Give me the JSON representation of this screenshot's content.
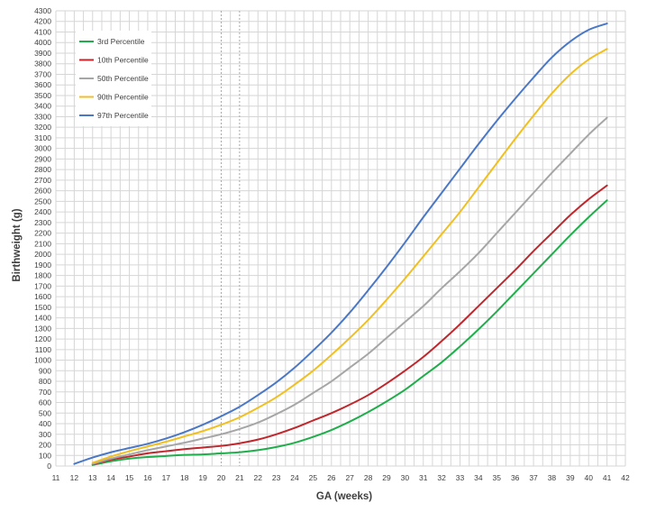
{
  "chart_data": {
    "type": "line",
    "xlabel": "GA (weeks)",
    "ylabel": "Birthweight (g)",
    "xlim": [
      11,
      42
    ],
    "ylim": [
      0,
      4300
    ],
    "x_ticks": [
      11,
      12,
      13,
      14,
      15,
      16,
      17,
      18,
      19,
      20,
      21,
      22,
      23,
      24,
      25,
      26,
      27,
      28,
      29,
      30,
      31,
      32,
      33,
      34,
      35,
      36,
      37,
      38,
      39,
      40,
      41,
      42
    ],
    "y_ticks": [
      0,
      100,
      200,
      300,
      400,
      500,
      600,
      700,
      800,
      900,
      1000,
      1100,
      1200,
      1300,
      1400,
      1500,
      1600,
      1700,
      1800,
      1900,
      2000,
      2100,
      2200,
      2300,
      2400,
      2500,
      2600,
      2700,
      2800,
      2900,
      3000,
      3100,
      3200,
      3300,
      3400,
      3500,
      3600,
      3700,
      3800,
      3900,
      4000,
      4100,
      4200,
      4300
    ],
    "grid": true,
    "legend_position": "top-left",
    "x": [
      12,
      13,
      14,
      15,
      16,
      17,
      18,
      19,
      20,
      21,
      22,
      23,
      24,
      25,
      26,
      27,
      28,
      29,
      30,
      31,
      32,
      33,
      34,
      35,
      36,
      37,
      38,
      39,
      40,
      41
    ],
    "series": [
      {
        "name": "3rd Percentile",
        "color": "#1fae4b",
        "x": [
          13,
          14,
          15,
          16,
          17,
          18,
          19,
          20,
          21,
          22,
          23,
          24,
          25,
          26,
          27,
          28,
          29,
          30,
          31,
          32,
          33,
          34,
          35,
          36,
          37,
          38,
          39,
          40,
          41
        ],
        "values": [
          10,
          45,
          70,
          85,
          95,
          105,
          110,
          120,
          130,
          150,
          180,
          220,
          275,
          340,
          420,
          510,
          610,
          720,
          850,
          980,
          1130,
          1290,
          1460,
          1640,
          1820,
          2000,
          2180,
          2350,
          2510
        ]
      },
      {
        "name": "10th Percentile",
        "color": "#c0272d",
        "x": [
          13,
          14,
          15,
          16,
          17,
          18,
          19,
          20,
          21,
          22,
          23,
          24,
          25,
          26,
          27,
          28,
          29,
          30,
          31,
          32,
          33,
          34,
          35,
          36,
          37,
          38,
          39,
          40,
          41
        ],
        "values": [
          15,
          60,
          90,
          120,
          140,
          160,
          175,
          190,
          215,
          250,
          300,
          360,
          430,
          500,
          580,
          670,
          780,
          900,
          1030,
          1180,
          1340,
          1510,
          1680,
          1850,
          2030,
          2200,
          2370,
          2520,
          2650
        ]
      },
      {
        "name": "50th Percentile",
        "color": "#a6a6a6",
        "x": [
          13,
          14,
          15,
          16,
          17,
          18,
          19,
          20,
          21,
          22,
          23,
          24,
          25,
          26,
          27,
          28,
          29,
          30,
          31,
          32,
          33,
          34,
          35,
          36,
          37,
          38,
          39,
          40,
          41
        ],
        "values": [
          20,
          70,
          110,
          150,
          185,
          220,
          260,
          300,
          350,
          410,
          490,
          580,
          690,
          800,
          930,
          1060,
          1210,
          1360,
          1510,
          1680,
          1840,
          2010,
          2200,
          2390,
          2580,
          2770,
          2950,
          3130,
          3290
        ]
      },
      {
        "name": "90th Percentile",
        "color": "#f0c020",
        "x": [
          13,
          14,
          15,
          16,
          17,
          18,
          19,
          20,
          21,
          22,
          23,
          24,
          25,
          26,
          27,
          28,
          29,
          30,
          31,
          32,
          33,
          34,
          35,
          36,
          37,
          38,
          39,
          40,
          41
        ],
        "values": [
          30,
          90,
          140,
          185,
          230,
          280,
          330,
          390,
          460,
          550,
          650,
          770,
          900,
          1050,
          1210,
          1380,
          1570,
          1770,
          1980,
          2190,
          2400,
          2630,
          2860,
          3090,
          3310,
          3520,
          3700,
          3840,
          3940
        ]
      },
      {
        "name": "97th Percentile",
        "color": "#4a78c6",
        "x": [
          12,
          13,
          14,
          15,
          16,
          17,
          18,
          19,
          20,
          21,
          22,
          23,
          24,
          25,
          26,
          27,
          28,
          29,
          30,
          31,
          32,
          33,
          34,
          35,
          36,
          37,
          38,
          39,
          40,
          41
        ],
        "values": [
          20,
          80,
          130,
          170,
          210,
          260,
          320,
          390,
          470,
          560,
          670,
          790,
          930,
          1090,
          1260,
          1450,
          1660,
          1880,
          2110,
          2350,
          2580,
          2810,
          3040,
          3260,
          3470,
          3670,
          3860,
          4010,
          4120,
          4180
        ]
      }
    ]
  }
}
